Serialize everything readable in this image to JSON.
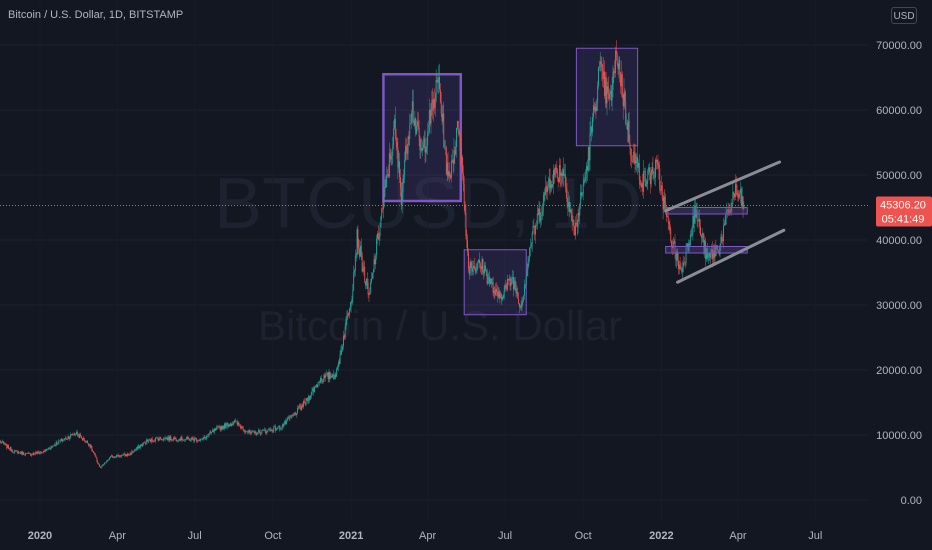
{
  "header": {
    "title": "Bitcoin / U.S. Dollar, 1D, BITSTAMP",
    "currency": "USD"
  },
  "watermark": {
    "symbol": "BTCUSD, 1D",
    "description": "Bitcoin / U.S. Dollar"
  },
  "price_badge": {
    "price": "45306.20",
    "countdown": "05:41:49"
  },
  "colors": {
    "background": "#131722",
    "up": "#26a69a",
    "down": "#ef5350",
    "box_fill": "#5b4a9e",
    "box_stroke": "#7e57c2",
    "channel": "#8a8d96",
    "price_line": "#ef5350",
    "badge": "#ef5350"
  },
  "chart_data": {
    "type": "candlestick",
    "title": "Bitcoin / U.S. Dollar, 1D, BITSTAMP",
    "y_ticks": [
      "70000.00",
      "60000.00",
      "50000.00",
      "40000.00",
      "30000.00",
      "20000.00",
      "10000.00",
      "0.00"
    ],
    "x_ticks": [
      {
        "label": "2020",
        "bold": true
      },
      {
        "label": "Apr",
        "bold": false
      },
      {
        "label": "Jul",
        "bold": false
      },
      {
        "label": "Oct",
        "bold": false
      },
      {
        "label": "2021",
        "bold": true
      },
      {
        "label": "Apr",
        "bold": false
      },
      {
        "label": "Jul",
        "bold": false
      },
      {
        "label": "Oct",
        "bold": false
      },
      {
        "label": "2022",
        "bold": true
      },
      {
        "label": "Apr",
        "bold": false
      },
      {
        "label": "Jul",
        "bold": false
      }
    ],
    "ylim": [
      0,
      74000
    ],
    "x_range": [
      "2019-11-15",
      "2022-09-01"
    ],
    "last_price": 45306.2,
    "price_path": [
      [
        "2019-11-15",
        9000
      ],
      [
        "2019-12-01",
        7500
      ],
      [
        "2019-12-18",
        7000
      ],
      [
        "2020-01-05",
        7400
      ],
      [
        "2020-01-20",
        8700
      ],
      [
        "2020-02-12",
        10300
      ],
      [
        "2020-02-28",
        8600
      ],
      [
        "2020-03-12",
        4900
      ],
      [
        "2020-03-25",
        6700
      ],
      [
        "2020-04-15",
        7000
      ],
      [
        "2020-05-05",
        9000
      ],
      [
        "2020-05-20",
        9500
      ],
      [
        "2020-06-15",
        9400
      ],
      [
        "2020-07-10",
        9300
      ],
      [
        "2020-07-28",
        11000
      ],
      [
        "2020-08-17",
        12000
      ],
      [
        "2020-09-05",
        10200
      ],
      [
        "2020-09-25",
        10700
      ],
      [
        "2020-10-10",
        11200
      ],
      [
        "2020-10-25",
        13000
      ],
      [
        "2020-11-10",
        15300
      ],
      [
        "2020-11-25",
        18500
      ],
      [
        "2020-12-15",
        19500
      ],
      [
        "2021-01-02",
        32000
      ],
      [
        "2021-01-08",
        40500
      ],
      [
        "2021-01-22",
        31000
      ],
      [
        "2021-02-08",
        46000
      ],
      [
        "2021-02-21",
        57000
      ],
      [
        "2021-03-01",
        47000
      ],
      [
        "2021-03-13",
        61000
      ],
      [
        "2021-03-25",
        53000
      ],
      [
        "2021-04-14",
        64500
      ],
      [
        "2021-04-25",
        49000
      ],
      [
        "2021-05-08",
        58000
      ],
      [
        "2021-05-19",
        36000
      ],
      [
        "2021-06-05",
        36000
      ],
      [
        "2021-06-22",
        31000
      ],
      [
        "2021-07-10",
        34000
      ],
      [
        "2021-07-20",
        29800
      ],
      [
        "2021-08-01",
        40000
      ],
      [
        "2021-08-23",
        49500
      ],
      [
        "2021-09-07",
        51000
      ],
      [
        "2021-09-21",
        41000
      ],
      [
        "2021-10-05",
        51000
      ],
      [
        "2021-10-20",
        66000
      ],
      [
        "2021-11-01",
        61000
      ],
      [
        "2021-11-10",
        68800
      ],
      [
        "2021-11-26",
        54000
      ],
      [
        "2021-12-10",
        49000
      ],
      [
        "2021-12-27",
        51000
      ],
      [
        "2022-01-10",
        41500
      ],
      [
        "2022-01-24",
        35000
      ],
      [
        "2022-02-10",
        44500
      ],
      [
        "2022-02-24",
        37000
      ],
      [
        "2022-03-10",
        39000
      ],
      [
        "2022-03-28",
        47500
      ],
      [
        "2022-04-04",
        46300
      ],
      [
        "2022-04-08",
        45306
      ]
    ],
    "annotations": {
      "boxes": [
        {
          "from": "2021-02-08",
          "to": "2021-05-10",
          "low": 46000,
          "high": 65500,
          "emphasis": true
        },
        {
          "from": "2021-05-14",
          "to": "2021-07-26",
          "low": 28500,
          "high": 38500,
          "emphasis": false
        },
        {
          "from": "2021-09-23",
          "to": "2021-12-04",
          "low": 54500,
          "high": 69500,
          "emphasis": false
        }
      ],
      "zones": [
        {
          "from": "2022-01-06",
          "to": "2022-04-12",
          "low": 44000,
          "high": 45000
        },
        {
          "from": "2022-01-06",
          "to": "2022-04-12",
          "low": 38000,
          "high": 39000
        }
      ],
      "channel": [
        {
          "from": [
            "2022-01-06",
            44500
          ],
          "to": [
            "2022-05-20",
            52000
          ]
        },
        {
          "from": [
            "2022-01-20",
            33500
          ],
          "to": [
            "2022-05-25",
            41500
          ]
        }
      ]
    }
  }
}
